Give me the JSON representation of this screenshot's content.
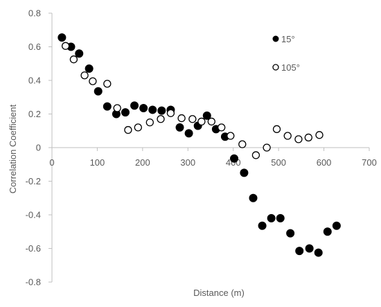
{
  "chart_data": {
    "type": "scatter",
    "title": "",
    "xlabel": "Distance (m)",
    "ylabel": "Correlation Coefficient",
    "xlim": [
      0,
      700
    ],
    "ylim": [
      -0.8,
      0.8
    ],
    "x_ticks": [
      0,
      100,
      200,
      300,
      400,
      500,
      600,
      700
    ],
    "x_tick_labels": [
      "0",
      "100",
      "200",
      "300",
      "400",
      "500",
      "600",
      "700"
    ],
    "y_ticks": [
      -0.8,
      -0.6,
      -0.4,
      -0.2,
      0,
      0.2,
      0.4,
      0.6,
      0.8
    ],
    "y_tick_labels": [
      "-0.8",
      "-0.6",
      "-0.4",
      "-0.2",
      "0",
      "0.2",
      "0.4",
      "0.6",
      "0.8"
    ],
    "grid": false,
    "legend_position": "right",
    "series": [
      {
        "name": "15°",
        "marker": "filled-circle",
        "color": "#000000",
        "points": [
          [
            22,
            0.655
          ],
          [
            42,
            0.6
          ],
          [
            60,
            0.56
          ],
          [
            82,
            0.47
          ],
          [
            102,
            0.335
          ],
          [
            122,
            0.245
          ],
          [
            142,
            0.2
          ],
          [
            162,
            0.21
          ],
          [
            182,
            0.25
          ],
          [
            202,
            0.235
          ],
          [
            222,
            0.225
          ],
          [
            242,
            0.22
          ],
          [
            262,
            0.225
          ],
          [
            282,
            0.12
          ],
          [
            302,
            0.085
          ],
          [
            322,
            0.13
          ],
          [
            342,
            0.19
          ],
          [
            362,
            0.11
          ],
          [
            382,
            0.065
          ],
          [
            402,
            -0.065
          ],
          [
            424,
            -0.15
          ],
          [
            444,
            -0.3
          ],
          [
            464,
            -0.465
          ],
          [
            484,
            -0.42
          ],
          [
            504,
            -0.42
          ],
          [
            526,
            -0.51
          ],
          [
            546,
            -0.615
          ],
          [
            568,
            -0.6
          ],
          [
            588,
            -0.625
          ],
          [
            608,
            -0.5
          ],
          [
            628,
            -0.465
          ]
        ]
      },
      {
        "name": "105°",
        "marker": "open-circle",
        "color": "#000000",
        "points": [
          [
            30,
            0.605
          ],
          [
            48,
            0.525
          ],
          [
            72,
            0.43
          ],
          [
            90,
            0.395
          ],
          [
            122,
            0.38
          ],
          [
            144,
            0.235
          ],
          [
            168,
            0.105
          ],
          [
            190,
            0.12
          ],
          [
            216,
            0.15
          ],
          [
            240,
            0.17
          ],
          [
            262,
            0.205
          ],
          [
            286,
            0.175
          ],
          [
            310,
            0.17
          ],
          [
            330,
            0.155
          ],
          [
            352,
            0.155
          ],
          [
            374,
            0.12
          ],
          [
            394,
            0.07
          ],
          [
            420,
            0.02
          ],
          [
            450,
            -0.045
          ],
          [
            474,
            0.0
          ],
          [
            496,
            0.11
          ],
          [
            520,
            0.07
          ],
          [
            544,
            0.05
          ],
          [
            566,
            0.06
          ],
          [
            590,
            0.075
          ]
        ]
      }
    ]
  }
}
